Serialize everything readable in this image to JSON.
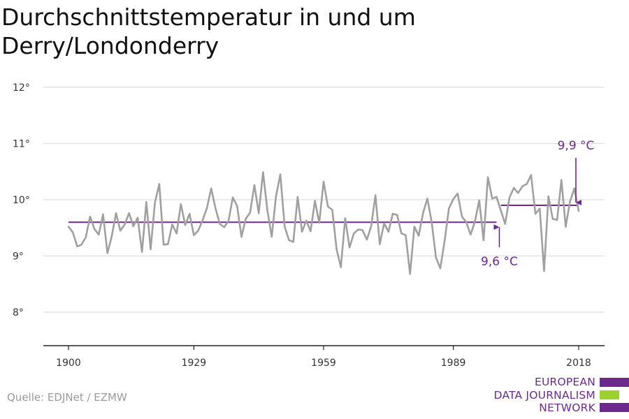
{
  "title": "Durchschnittstemperatur in und um Derry/Londonderry",
  "source": "Quelle: EDJNet / EZMW",
  "logo": {
    "lines": [
      "EUROPEAN",
      "DATA JOURNALISM",
      "NETWORK"
    ]
  },
  "colors": {
    "series": "#a0a0a0",
    "reference": "#6b2a8c",
    "grid": "#dddddd",
    "axis": "#222222",
    "accent_green": "#9bd22e"
  },
  "chart_data": {
    "type": "line",
    "title": "Durchschnittstemperatur in und um Derry/Londonderry",
    "xlabel": "",
    "ylabel": "",
    "xlim": [
      1900,
      2018
    ],
    "ylim": [
      8,
      12
    ],
    "y_ticks": [
      {
        "value": 8,
        "label": "8°"
      },
      {
        "value": 9,
        "label": "9°"
      },
      {
        "value": 10,
        "label": "10°"
      },
      {
        "value": 11,
        "label": "11°"
      },
      {
        "value": 12,
        "label": "12°"
      }
    ],
    "x_ticks": [
      {
        "value": 1900,
        "label": "1900"
      },
      {
        "value": 1929,
        "label": "1929"
      },
      {
        "value": 1959,
        "label": "1959"
      },
      {
        "value": 1989,
        "label": "1989"
      },
      {
        "value": 2018,
        "label": "2018"
      }
    ],
    "grid": true,
    "series": [
      {
        "x_start": 1900,
        "values": [
          9.52,
          9.42,
          9.17,
          9.2,
          9.33,
          9.7,
          9.48,
          9.38,
          9.74,
          9.05,
          9.35,
          9.76,
          9.45,
          9.56,
          9.76,
          9.53,
          9.68,
          9.07,
          9.96,
          9.12,
          9.95,
          10.28,
          9.2,
          9.21,
          9.56,
          9.4,
          9.92,
          9.55,
          9.75,
          9.37,
          9.45,
          9.63,
          9.85,
          10.2,
          9.85,
          9.57,
          9.51,
          9.62,
          10.04,
          9.89,
          9.34,
          9.66,
          9.77,
          10.26,
          9.76,
          10.49,
          9.81,
          9.34,
          10.06,
          10.45,
          9.52,
          9.28,
          9.25,
          10.05,
          9.43,
          9.63,
          9.44,
          9.98,
          9.59,
          10.32,
          9.88,
          9.82,
          9.12,
          8.8,
          9.67,
          9.15,
          9.4,
          9.47,
          9.46,
          9.29,
          9.53,
          10.08,
          9.21,
          9.58,
          9.43,
          9.75,
          9.73,
          9.4,
          9.37,
          8.68,
          9.52,
          9.36,
          9.76,
          10.02,
          9.6,
          8.97,
          8.78,
          9.27,
          9.85,
          10.01,
          10.11,
          9.7,
          9.6,
          9.38,
          9.61,
          9.99,
          9.28,
          10.4,
          10.02,
          10.05,
          9.81,
          9.57,
          10.04,
          10.21,
          10.12,
          10.24,
          10.28,
          10.44,
          9.75,
          9.84,
          8.73,
          10.06,
          9.66,
          9.64,
          10.35,
          9.52,
          9.97,
          10.2,
          9.8
        ]
      }
    ],
    "reference_lines": [
      {
        "x_start": 1900,
        "x_end": 1999,
        "value": 9.6
      },
      {
        "x_start": 2000,
        "x_end": 2018,
        "value": 9.9
      }
    ],
    "annotations": [
      {
        "label": "9,6 °C",
        "x": 1999,
        "value": 9.6
      },
      {
        "label": "9,9 °C",
        "x": 2018,
        "value": 9.9
      }
    ]
  }
}
